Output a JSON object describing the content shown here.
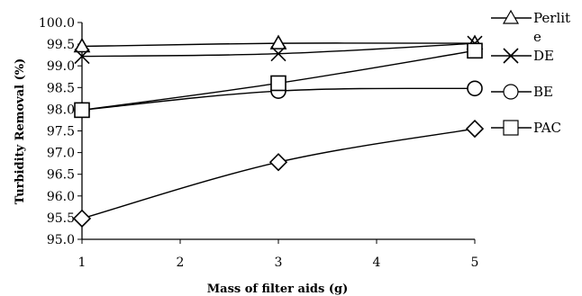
{
  "chart_data": {
    "type": "line",
    "title": "",
    "xlabel": "Mass of filter aids (g)",
    "ylabel": "Turbidity Removal (%)",
    "xlim": [
      1,
      5
    ],
    "ylim": [
      95.0,
      100.0
    ],
    "xticks": [
      "1",
      "2",
      "3",
      "4",
      "5"
    ],
    "yticks": [
      "95.0",
      "95.5",
      "96.0",
      "96.5",
      "97.0",
      "97.5",
      "98.0",
      "98.5",
      "99.0",
      "99.5",
      "100.0"
    ],
    "grid": false,
    "legend_position": "right",
    "x": [
      1,
      3,
      5
    ],
    "series": [
      {
        "name": "Perlite",
        "marker": "triangle",
        "values": [
          99.45,
          99.52,
          99.52
        ]
      },
      {
        "name": "DE",
        "marker": "x",
        "values": [
          99.22,
          99.28,
          99.52
        ]
      },
      {
        "name": "BE",
        "marker": "circle",
        "values": [
          97.98,
          98.42,
          98.48
        ]
      },
      {
        "name": "PAC",
        "marker": "square",
        "values": [
          97.98,
          98.6,
          99.35
        ]
      },
      {
        "name": "",
        "marker": "diamond",
        "values": [
          95.48,
          96.78,
          97.55
        ]
      }
    ]
  }
}
